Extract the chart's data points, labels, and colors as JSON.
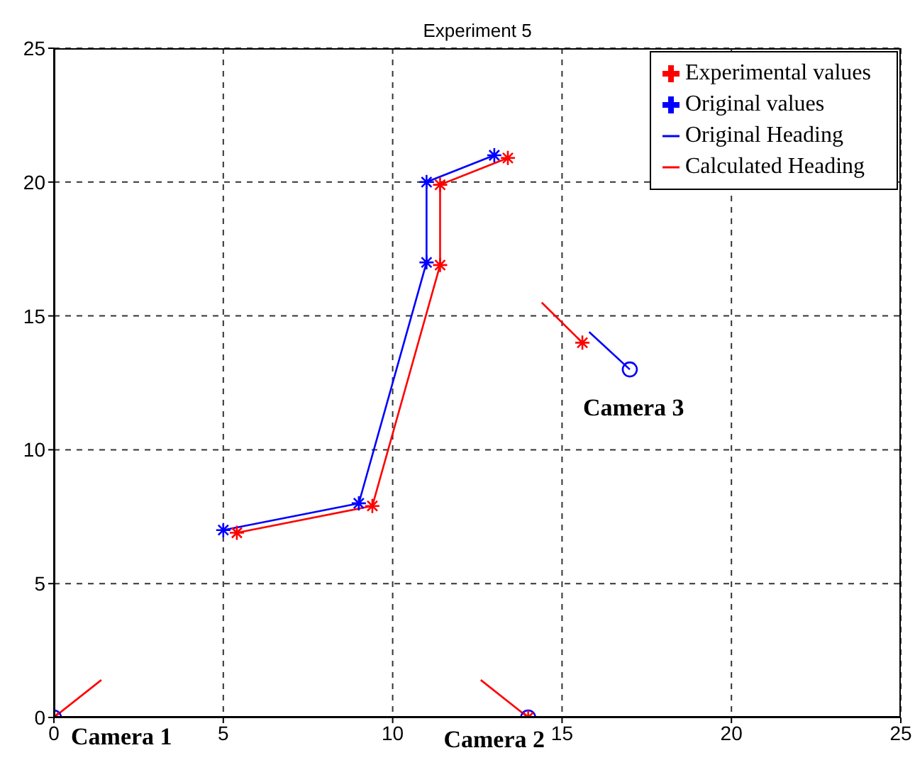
{
  "chart_data": {
    "type": "line",
    "title": "Experiment 5",
    "xlim": [
      0,
      25
    ],
    "xticks": [
      0,
      5,
      10,
      15,
      20,
      25
    ],
    "ylim": [
      0,
      25
    ],
    "yticks": [
      0,
      5,
      10,
      15,
      20,
      25
    ],
    "grid": true,
    "legend": "top right",
    "series": [
      {
        "name": "Experimental values",
        "color": "#ff0000",
        "marker": "cross",
        "x": [
          5.4,
          9.4,
          11.4,
          11.4,
          13.4
        ],
        "values": [
          6.9,
          7.9,
          16.9,
          19.9,
          20.9
        ]
      },
      {
        "name": "Original values",
        "color": "#0000ff",
        "marker": "cross",
        "x": [
          5,
          9,
          11,
          11,
          13
        ],
        "values": [
          7,
          8,
          17,
          20,
          21
        ]
      },
      {
        "name": "Original Heading",
        "color": "#0000ff",
        "marker": "none",
        "x": [
          15.8,
          17
        ],
        "values": [
          14.4,
          13
        ]
      },
      {
        "name": "Calculated Heading",
        "color": "#ff0000",
        "marker": "none",
        "x": [
          0,
          1.4
        ],
        "values": [
          0,
          1.4
        ]
      },
      {
        "color": "#ff0000",
        "marker": "none",
        "x": [
          14,
          12.6
        ],
        "values": [
          0,
          1.4
        ]
      },
      {
        "color": "#ff0000",
        "marker": "none",
        "x": [
          15.6,
          14.4
        ],
        "values": [
          14,
          15.5
        ]
      },
      {
        "type": "scatter",
        "color": "#0000ff",
        "marker": "circle",
        "x": [
          0,
          14,
          17
        ],
        "values": [
          0,
          0,
          13
        ]
      },
      {
        "type": "scatter",
        "color": "#ff0000",
        "marker": "cross",
        "x": [
          0,
          14,
          15.6
        ],
        "values": [
          0,
          0,
          14
        ]
      }
    ],
    "annotations": [
      "Camera 1",
      "Camera 2",
      "Camera 3"
    ]
  }
}
